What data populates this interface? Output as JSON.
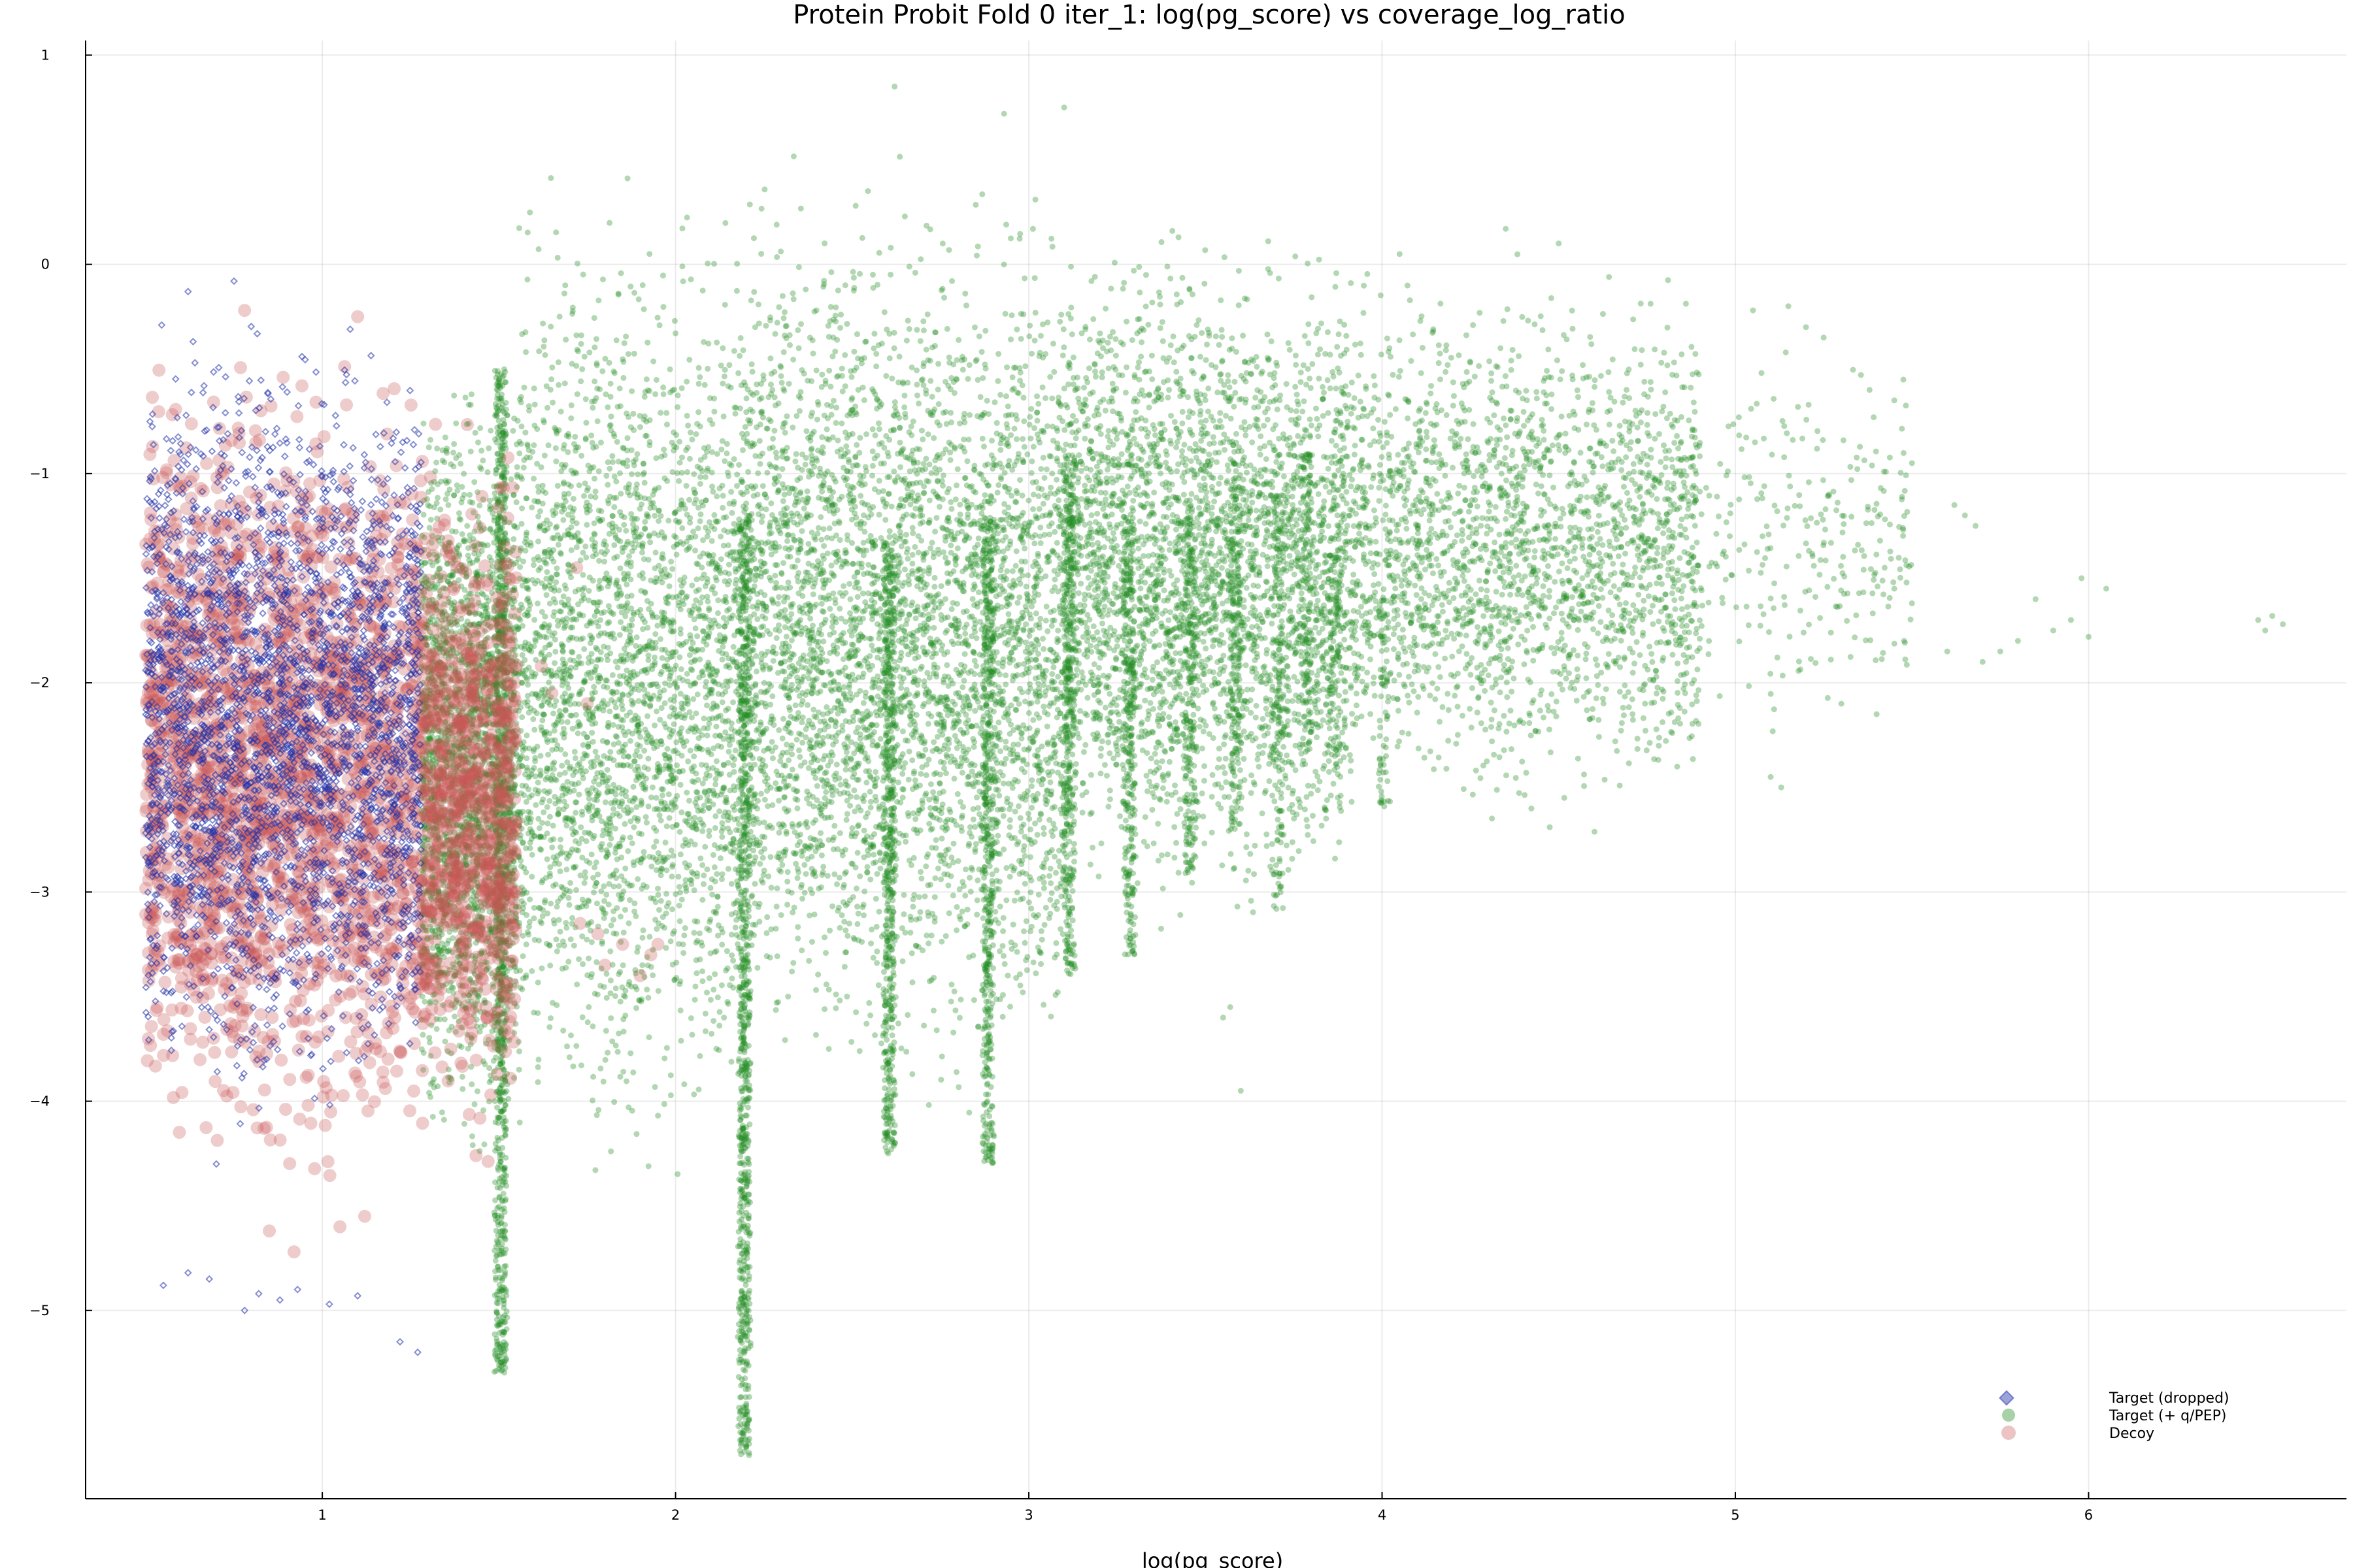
{
  "chart_data": {
    "type": "scatter",
    "title": "Protein Probit Fold 0 iter_1: log(pg_score) vs coverage_log_ratio",
    "xlabel": "log(pg_score)",
    "ylabel": "",
    "xlim": [
      0.33,
      6.73
    ],
    "ylim": [
      -5.9,
      1.07
    ],
    "x_ticks": [
      1,
      2,
      3,
      4,
      5,
      6
    ],
    "y_ticks": [
      1,
      0,
      -1,
      -2,
      -3,
      -4,
      -5
    ],
    "x_tick_labels": [
      "1",
      "2",
      "3",
      "4",
      "5",
      "6"
    ],
    "y_tick_labels": [
      "1",
      "0",
      "−1",
      "−2",
      "−3",
      "−4",
      "−5"
    ],
    "grid": true,
    "legend_position": "bottom-right",
    "series": [
      {
        "name": "Target (dropped)",
        "marker": "diamond",
        "color": "#2233aa",
        "opacity": 0.55,
        "clusters": [
          {
            "x": [
              0.5,
              1.28
            ],
            "y": [
              -4.25,
              -0.08
            ],
            "count": 3200
          }
        ],
        "points": [
          {
            "x": 0.55,
            "y": -4.88
          },
          {
            "x": 0.62,
            "y": -4.82
          },
          {
            "x": 0.68,
            "y": -4.85
          },
          {
            "x": 0.78,
            "y": -5.0
          },
          {
            "x": 0.82,
            "y": -4.92
          },
          {
            "x": 0.88,
            "y": -4.95
          },
          {
            "x": 0.93,
            "y": -4.9
          },
          {
            "x": 1.02,
            "y": -4.97
          },
          {
            "x": 1.1,
            "y": -4.93
          },
          {
            "x": 1.22,
            "y": -5.15
          },
          {
            "x": 1.27,
            "y": -5.2
          },
          {
            "x": 0.7,
            "y": -4.3
          },
          {
            "x": 0.62,
            "y": -0.13
          },
          {
            "x": 0.75,
            "y": -0.08
          }
        ]
      },
      {
        "name": "Target (+ q/PEP)",
        "marker": "circle",
        "color": "#228b22",
        "opacity": 0.35,
        "clusters": [
          {
            "x": [
              1.28,
              1.55
            ],
            "y": [
              -4.5,
              -0.35
            ],
            "count": 2600
          },
          {
            "x": [
              1.55,
              2.2
            ],
            "y": [
              -4.5,
              0.5
            ],
            "count": 3000
          },
          {
            "x": [
              2.2,
              3.1
            ],
            "y": [
              -4.2,
              0.6
            ],
            "count": 4200
          },
          {
            "x": [
              3.1,
              3.9
            ],
            "y": [
              -3.3,
              0.35
            ],
            "count": 3400
          },
          {
            "x": [
              3.9,
              4.9
            ],
            "y": [
              -2.8,
              0.1
            ],
            "count": 2400
          },
          {
            "x": [
              4.9,
              5.5
            ],
            "y": [
              -2.3,
              -0.3
            ],
            "count": 260
          }
        ],
        "stripes": [
          {
            "x": 1.52,
            "y": [
              -5.3,
              -0.5
            ],
            "count": 900
          },
          {
            "x": 2.21,
            "y": [
              -5.7,
              -1.2
            ],
            "count": 800
          },
          {
            "x": 2.62,
            "y": [
              -4.25,
              -1.3
            ],
            "count": 500
          },
          {
            "x": 2.9,
            "y": [
              -4.3,
              -1.2
            ],
            "count": 500
          },
          {
            "x": 3.13,
            "y": [
              -3.4,
              -0.9
            ],
            "count": 380
          },
          {
            "x": 3.3,
            "y": [
              -3.3,
              -1.2
            ],
            "count": 260
          },
          {
            "x": 3.47,
            "y": [
              -2.9,
              -1.2
            ],
            "count": 200
          },
          {
            "x": 3.6,
            "y": [
              -2.7,
              -1.0
            ],
            "count": 180
          },
          {
            "x": 3.72,
            "y": [
              -3.1,
              -1.1
            ],
            "count": 150
          },
          {
            "x": 3.8,
            "y": [
              -2.4,
              -0.9
            ],
            "count": 120
          },
          {
            "x": 3.88,
            "y": [
              -2.35,
              -1.3
            ],
            "count": 100
          },
          {
            "x": 4.02,
            "y": [
              -2.6,
              -1.6
            ],
            "count": 60
          }
        ],
        "points": [
          {
            "x": 5.05,
            "y": -0.22
          },
          {
            "x": 5.15,
            "y": -0.2
          },
          {
            "x": 5.2,
            "y": -0.3
          },
          {
            "x": 5.25,
            "y": -0.35
          },
          {
            "x": 5.38,
            "y": -0.6
          },
          {
            "x": 5.45,
            "y": -0.65
          },
          {
            "x": 5.5,
            "y": -0.95
          },
          {
            "x": 5.62,
            "y": -1.15
          },
          {
            "x": 5.65,
            "y": -1.2
          },
          {
            "x": 5.68,
            "y": -1.25
          },
          {
            "x": 5.45,
            "y": -1.55
          },
          {
            "x": 5.5,
            "y": -1.62
          },
          {
            "x": 5.6,
            "y": -1.85
          },
          {
            "x": 5.7,
            "y": -1.9
          },
          {
            "x": 5.75,
            "y": -1.85
          },
          {
            "x": 5.8,
            "y": -1.8
          },
          {
            "x": 5.85,
            "y": -1.6
          },
          {
            "x": 5.9,
            "y": -1.75
          },
          {
            "x": 5.95,
            "y": -1.7
          },
          {
            "x": 6.0,
            "y": -1.78
          },
          {
            "x": 5.98,
            "y": -1.5
          },
          {
            "x": 6.05,
            "y": -1.55
          },
          {
            "x": 6.48,
            "y": -1.7
          },
          {
            "x": 6.5,
            "y": -1.75
          },
          {
            "x": 6.52,
            "y": -1.68
          },
          {
            "x": 6.55,
            "y": -1.72
          },
          {
            "x": 5.1,
            "y": -2.45
          },
          {
            "x": 5.13,
            "y": -2.5
          },
          {
            "x": 5.3,
            "y": -2.1
          },
          {
            "x": 5.4,
            "y": -2.15
          },
          {
            "x": 4.35,
            "y": 0.17
          },
          {
            "x": 4.5,
            "y": 0.1
          },
          {
            "x": 3.1,
            "y": 0.75
          },
          {
            "x": 2.93,
            "y": 0.72
          },
          {
            "x": 2.62,
            "y": 0.85
          },
          {
            "x": 3.57,
            "y": -3.55
          },
          {
            "x": 3.6,
            "y": -3.95
          },
          {
            "x": 3.55,
            "y": -3.6
          }
        ]
      },
      {
        "name": "Decoy",
        "marker": "circle",
        "color": "#c95555",
        "opacity": 0.3,
        "clusters": [
          {
            "x": [
              0.5,
              1.28
            ],
            "y": [
              -4.6,
              -0.2
            ],
            "count": 2300
          },
          {
            "x": [
              1.28,
              1.55
            ],
            "y": [
              -4.4,
              -0.7
            ],
            "count": 900
          }
        ],
        "points": [
          {
            "x": 0.78,
            "y": -0.22
          },
          {
            "x": 1.1,
            "y": -0.25
          },
          {
            "x": 1.62,
            "y": -1.92
          },
          {
            "x": 1.65,
            "y": -2.05
          },
          {
            "x": 1.72,
            "y": -1.45
          },
          {
            "x": 1.75,
            "y": -2.1
          },
          {
            "x": 1.73,
            "y": -3.15
          },
          {
            "x": 1.78,
            "y": -3.2
          },
          {
            "x": 1.8,
            "y": -3.35
          },
          {
            "x": 1.85,
            "y": -3.25
          },
          {
            "x": 1.9,
            "y": -3.4
          },
          {
            "x": 1.93,
            "y": -3.3
          },
          {
            "x": 1.95,
            "y": -3.25
          },
          {
            "x": 0.85,
            "y": -4.62
          },
          {
            "x": 0.92,
            "y": -4.72
          },
          {
            "x": 1.05,
            "y": -4.6
          },
          {
            "x": 1.12,
            "y": -4.55
          }
        ]
      }
    ]
  }
}
